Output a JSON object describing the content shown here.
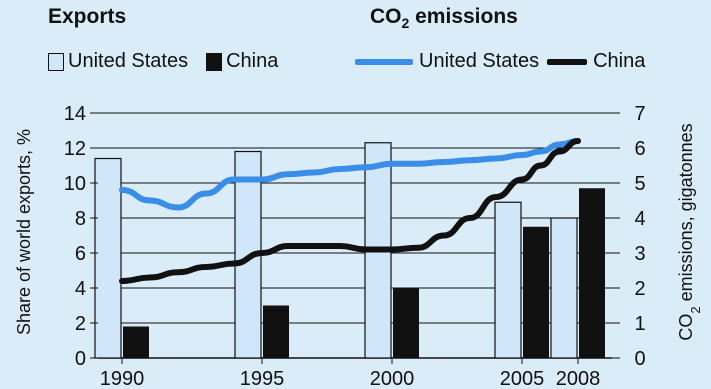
{
  "legend": {
    "exports_title": "Exports",
    "co2_title_main": "CO",
    "co2_title_sub": "2",
    "co2_title_rest": " emissions",
    "us_label": "United States",
    "china_label": "China"
  },
  "chart_data": {
    "type": "bar+line",
    "categories": [
      "1990",
      "1995",
      "2000",
      "2005",
      "2008"
    ],
    "bars": {
      "ylabel": "Share of world exports, %",
      "ylim": [
        0,
        14
      ],
      "yticks": [
        0,
        2,
        4,
        6,
        8,
        10,
        12,
        14
      ],
      "series": [
        {
          "name": "United States",
          "values": [
            11.4,
            11.8,
            12.3,
            8.9,
            8.0
          ],
          "color": "#cfe7f8"
        },
        {
          "name": "China",
          "values": [
            1.8,
            3.0,
            4.0,
            7.5,
            9.7
          ],
          "color": "#111111"
        }
      ]
    },
    "lines": {
      "ylabel_main": "CO",
      "ylabel_sub": "2",
      "ylabel_rest": " emissions, gigatonnes",
      "ylim": [
        0,
        7
      ],
      "yticks": [
        0,
        1,
        2,
        3,
        4,
        5,
        6,
        7
      ],
      "x": [
        1990,
        1991,
        1992,
        1993,
        1994,
        1995,
        1996,
        1997,
        1998,
        1999,
        2000,
        2001,
        2002,
        2003,
        2004,
        2005,
        2006,
        2007,
        2008
      ],
      "series": [
        {
          "name": "United States",
          "color": "#3b8ee8",
          "values": [
            4.8,
            4.5,
            4.3,
            4.7,
            5.1,
            5.1,
            5.25,
            5.3,
            5.4,
            5.45,
            5.55,
            5.55,
            5.6,
            5.65,
            5.7,
            5.8,
            5.9,
            6.1,
            6.2
          ]
        },
        {
          "name": "China",
          "color": "#111111",
          "values": [
            2.2,
            2.3,
            2.45,
            2.6,
            2.7,
            3.0,
            3.2,
            3.2,
            3.2,
            3.1,
            3.1,
            3.15,
            3.5,
            4.0,
            4.6,
            5.1,
            5.5,
            5.9,
            6.2
          ]
        }
      ]
    }
  }
}
